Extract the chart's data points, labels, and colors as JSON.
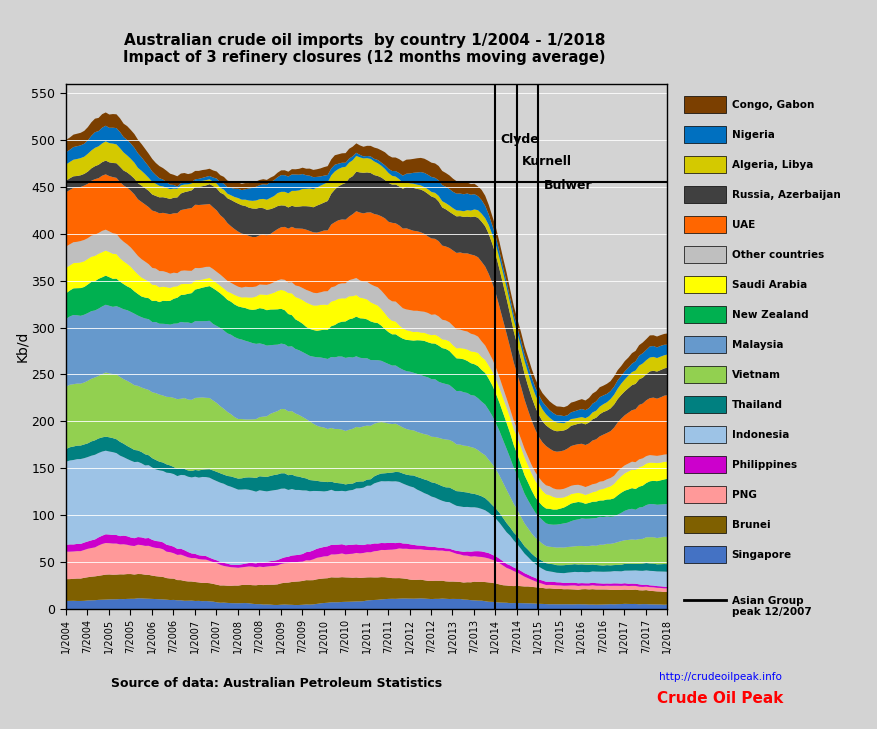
{
  "title_line1": "Australian crude oil imports  by country 1/2004 - 1/2018",
  "title_line2": "Impact of 3 refinery closures (12 months moving average)",
  "ylabel": "Kb/d",
  "ylim": [
    0,
    560
  ],
  "yticks": [
    0,
    50,
    100,
    150,
    200,
    250,
    300,
    350,
    400,
    450,
    500,
    550
  ],
  "bg_color": "#d3d3d3",
  "plot_bg": "#d3d3d3",
  "source_text": "Source of data: Australian Petroleum Statistics",
  "layers": [
    {
      "name": "Singapore",
      "color": "#4472C4"
    },
    {
      "name": "Brunei",
      "color": "#7F6000"
    },
    {
      "name": "PNG",
      "color": "#FF9999"
    },
    {
      "name": "Philippines",
      "color": "#CC00CC"
    },
    {
      "name": "Indonesia",
      "color": "#9DC3E6"
    },
    {
      "name": "Thailand",
      "color": "#008080"
    },
    {
      "name": "Vietnam",
      "color": "#92D050"
    },
    {
      "name": "Malaysia",
      "color": "#6699CC"
    },
    {
      "name": "New Zealand",
      "color": "#00B050"
    },
    {
      "name": "Saudi Arabia",
      "color": "#FFFF00"
    },
    {
      "name": "Other countries",
      "color": "#BFBFBF"
    },
    {
      "name": "UAE",
      "color": "#FF6600"
    },
    {
      "name": "Russia, Azerbaijan",
      "color": "#404040"
    },
    {
      "name": "Algeria, Libya",
      "color": "#D4C900"
    },
    {
      "name": "Nigeria",
      "color": "#0070C0"
    },
    {
      "name": "Congo, Gabon",
      "color": "#7B3F00"
    }
  ],
  "closure_lines": [
    {
      "name": "Clyde",
      "month_idx": 120
    },
    {
      "name": "Kurnell",
      "month_idx": 126
    },
    {
      "name": "Bulwer",
      "month_idx": 132
    }
  ],
  "peak_month_idx": 47,
  "peak_level": 466
}
